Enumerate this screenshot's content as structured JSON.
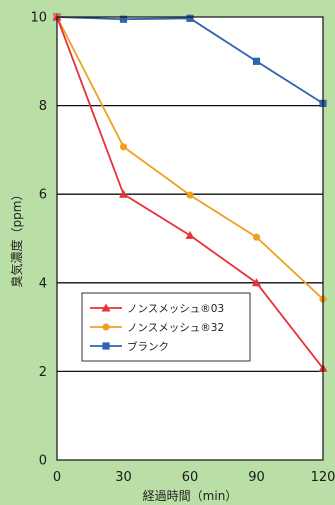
{
  "chart_data": {
    "type": "line",
    "title": "",
    "xlabel": "経過時間（min）",
    "ylabel": "臭気濃度（ppm）",
    "x": [
      0,
      30,
      60,
      90,
      120
    ],
    "xticks": [
      "0",
      "30",
      "60",
      "90",
      "120"
    ],
    "yticks": [
      "0",
      "2",
      "4",
      "6",
      "8",
      "10"
    ],
    "xlim": [
      0,
      120
    ],
    "ylim": [
      0,
      10
    ],
    "grid": "horizontal",
    "legend_position": "lower-left",
    "series": [
      {
        "name": "ノンスメッシュ®03",
        "values": [
          10,
          6.0,
          5.07,
          4.0,
          2.07
        ],
        "color": "#e8323a",
        "marker": "triangle"
      },
      {
        "name": "ノンスメッシュ®32",
        "values": [
          10,
          7.07,
          5.98,
          5.03,
          3.63
        ],
        "color": "#f0a020",
        "marker": "circle"
      },
      {
        "name": "ブランク",
        "values": [
          10,
          9.95,
          9.97,
          9.0,
          8.05
        ],
        "color": "#2f63b0",
        "marker": "square"
      }
    ]
  }
}
